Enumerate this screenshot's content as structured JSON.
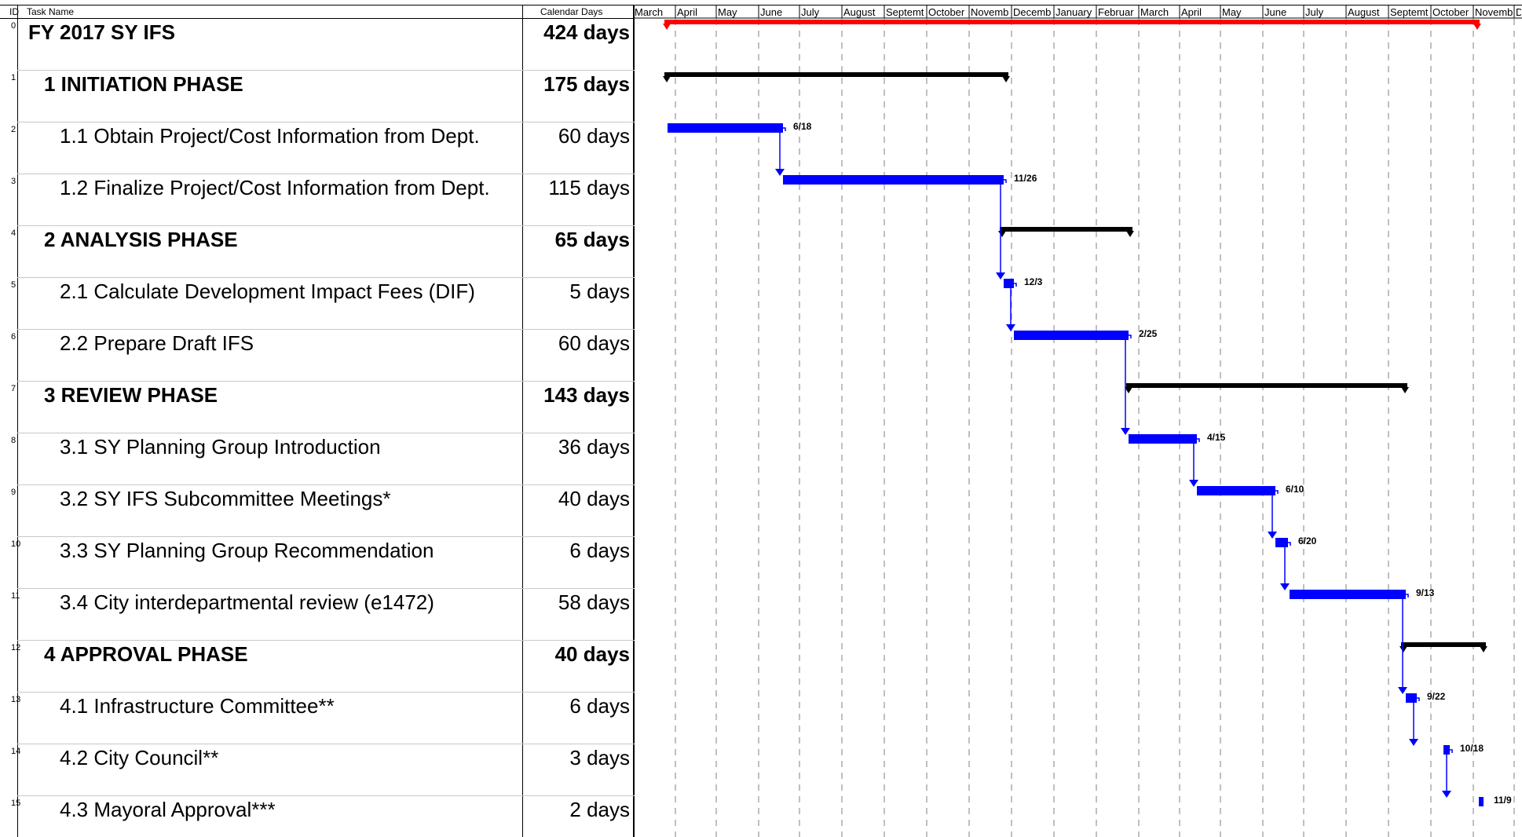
{
  "header": {
    "id": "ID",
    "task_name": "Task Name",
    "duration": "Calendar Days"
  },
  "months": [
    "March",
    "April",
    "May",
    "June",
    "July",
    "August",
    "Septemt",
    "October",
    "Novemb",
    "Decemb",
    "January",
    "Februar",
    "March",
    "April",
    "May",
    "June",
    "July",
    "August",
    "Septemt",
    "October",
    "Novemb",
    "De"
  ],
  "tasks": [
    {
      "id": "0",
      "name": "FY 2017 SY IFS",
      "duration": "424 days",
      "level": 0,
      "summary": true
    },
    {
      "id": "1",
      "name": "1 INITIATION PHASE",
      "duration": "175 days",
      "level": 1,
      "summary": true
    },
    {
      "id": "2",
      "name": "1.1 Obtain Project/Cost Information from Dept.",
      "duration": "60 days",
      "level": 2,
      "summary": false
    },
    {
      "id": "3",
      "name": "1.2 Finalize Project/Cost Information from Dept.",
      "duration": "115 days",
      "level": 2,
      "summary": false
    },
    {
      "id": "4",
      "name": "2 ANALYSIS PHASE",
      "duration": "65 days",
      "level": 1,
      "summary": true
    },
    {
      "id": "5",
      "name": "2.1 Calculate Development Impact Fees (DIF)",
      "duration": "5 days",
      "level": 2,
      "summary": false
    },
    {
      "id": "6",
      "name": "2.2 Prepare Draft IFS",
      "duration": "60 days",
      "level": 2,
      "summary": false
    },
    {
      "id": "7",
      "name": "3 REVIEW PHASE",
      "duration": "143 days",
      "level": 1,
      "summary": true
    },
    {
      "id": "8",
      "name": "3.1 SY Planning Group Introduction",
      "duration": "36 days",
      "level": 2,
      "summary": false
    },
    {
      "id": "9",
      "name": "3.2 SY IFS Subcommittee Meetings*",
      "duration": "40 days",
      "level": 2,
      "summary": false
    },
    {
      "id": "10",
      "name": "3.3 SY Planning Group Recommendation",
      "duration": "6 days",
      "level": 2,
      "summary": false
    },
    {
      "id": "11",
      "name": "3.4 City interdepartmental review (e1472)",
      "duration": "58 days",
      "level": 2,
      "summary": false
    },
    {
      "id": "12",
      "name": "4 APPROVAL PHASE",
      "duration": "40 days",
      "level": 1,
      "summary": true
    },
    {
      "id": "13",
      "name": "4.1 Infrastructure Committee**",
      "duration": "6 days",
      "level": 2,
      "summary": false
    },
    {
      "id": "14",
      "name": "4.2 City Council**",
      "duration": "3 days",
      "level": 2,
      "summary": false
    },
    {
      "id": "15",
      "name": "4.3 Mayoral Approval***",
      "duration": "2 days",
      "level": 2,
      "summary": false
    }
  ],
  "bar_end_labels": [
    "6/18",
    "11/26",
    "12/3",
    "2/25",
    "4/15",
    "6/10",
    "6/20",
    "9/13",
    "9/22",
    "10/18",
    "11/9"
  ],
  "colors": {
    "project_summary": "#ff0000",
    "summary": "#000000",
    "task": "#0000ff",
    "gridline": "#808080"
  }
}
